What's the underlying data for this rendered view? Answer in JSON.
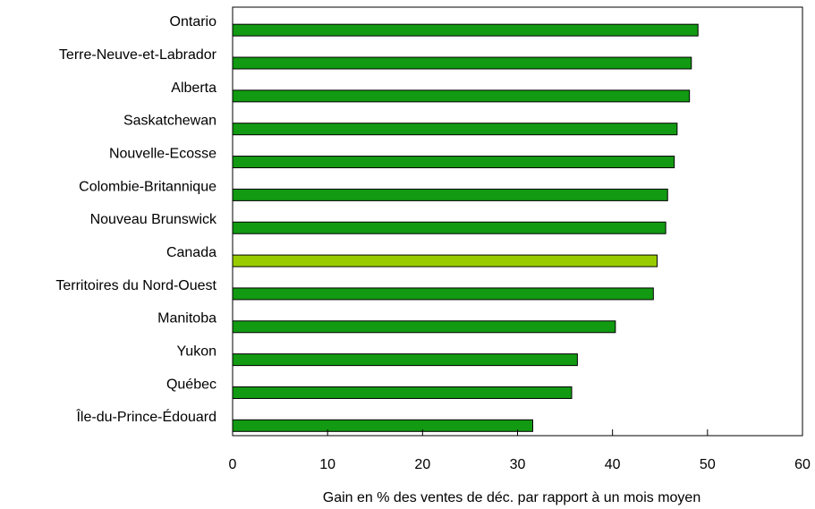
{
  "chart_data": {
    "type": "bar",
    "orientation": "horizontal",
    "title": "",
    "xlabel": "Gain en % des ventes de déc. par rapport à un mois moyen",
    "ylabel": "",
    "xlim": [
      0,
      60
    ],
    "xticks": [
      0,
      10,
      20,
      30,
      40,
      50,
      60
    ],
    "grid": false,
    "legend": "none",
    "categories": [
      "Ontario",
      "Terre-Neuve-et-Labrador",
      "Alberta",
      "Saskatchewan",
      "Nouvelle-Ecosse",
      "Colombie-Britannique",
      "Nouveau Brunswick",
      "Canada",
      "Territoires du Nord-Ouest",
      "Manitoba",
      "Yukon",
      "Québec",
      "Île-du-Prince-Édouard"
    ],
    "values": [
      49.0,
      48.3,
      48.1,
      46.8,
      46.5,
      45.8,
      45.6,
      44.7,
      44.3,
      40.3,
      36.3,
      35.7,
      31.6
    ],
    "colors": {
      "bar": "#129A12",
      "highlight": "#99CC00",
      "highlight_category": "Canada",
      "bar_stroke": "#000000",
      "axis": "#000000"
    }
  }
}
